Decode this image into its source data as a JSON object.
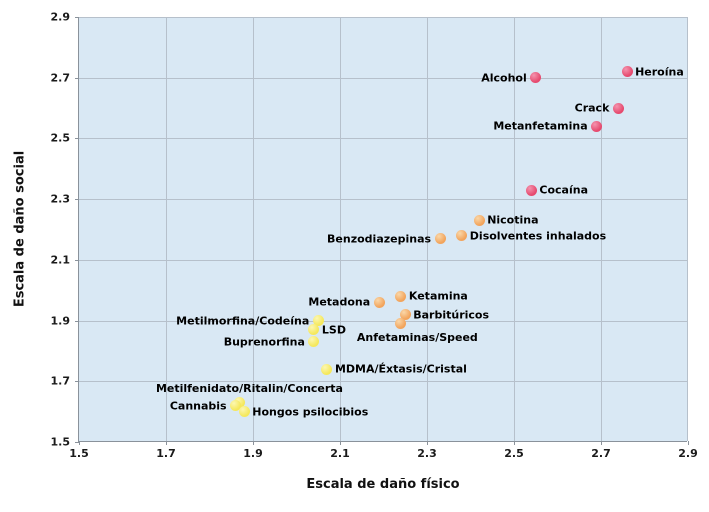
{
  "palette": {
    "plot_background": "#D9E8F4",
    "grid": "#B6C0CB",
    "axis": "#8A929B",
    "label_text": "#000000",
    "high_harm": "#E64A6E",
    "medium_harm": "#F2A45C",
    "low_harm": "#F5E85C"
  },
  "chart_data": {
    "type": "scatter",
    "title": "",
    "xlabel": "Escala de daño físico",
    "ylabel": "Escala de daño social",
    "xlim": [
      1.5,
      2.9
    ],
    "ylim": [
      1.5,
      2.9
    ],
    "grid": true,
    "legend_position": "none",
    "x_ticks": [
      1.5,
      1.7,
      1.9,
      2.1,
      2.3,
      2.5,
      2.7,
      2.9
    ],
    "y_ticks": [
      2.9,
      2.7,
      2.5,
      2.3,
      2.1,
      1.9,
      1.7,
      1.5
    ],
    "series": [
      {
        "name": "high-harm",
        "color": "#E64A6E",
        "highlight": "#F493AE",
        "points": [
          {
            "id": "alcohol",
            "label": "Alcohol",
            "x": 2.55,
            "y": 2.7,
            "anchor": "left"
          },
          {
            "id": "heroina",
            "label": "Heroína",
            "x": 2.76,
            "y": 2.72,
            "anchor": "right"
          },
          {
            "id": "crack",
            "label": "Crack",
            "x": 2.74,
            "y": 2.6,
            "anchor": "left"
          },
          {
            "id": "metanfetamina",
            "label": "Metanfetamina",
            "x": 2.69,
            "y": 2.54,
            "anchor": "left"
          },
          {
            "id": "cocaina",
            "label": "Cocaína",
            "x": 2.54,
            "y": 2.33,
            "anchor": "right"
          }
        ]
      },
      {
        "name": "medium-harm",
        "color": "#F2A45C",
        "highlight": "#FAD7A8",
        "points": [
          {
            "id": "nicotina",
            "label": "Nicotina",
            "x": 2.42,
            "y": 2.23,
            "anchor": "right"
          },
          {
            "id": "disolventes-inhalados",
            "label": "Disolventes inhalados",
            "x": 2.38,
            "y": 2.18,
            "anchor": "right"
          },
          {
            "id": "benzodiazepinas",
            "label": "Benzodiazepinas",
            "x": 2.33,
            "y": 2.17,
            "anchor": "left"
          },
          {
            "id": "ketamina",
            "label": "Ketamina",
            "x": 2.24,
            "y": 1.98,
            "anchor": "right"
          },
          {
            "id": "metadona",
            "label": "Metadona",
            "x": 2.19,
            "y": 1.96,
            "anchor": "left"
          },
          {
            "id": "barbituricos",
            "label": "Barbitúricos",
            "x": 2.25,
            "y": 1.92,
            "anchor": "right"
          },
          {
            "id": "anfetaminas-speed",
            "label": "Anfetaminas/Speed",
            "x": 2.24,
            "y": 1.89,
            "anchor": "free",
            "dx": -44,
            "dy": 7
          }
        ]
      },
      {
        "name": "low-harm",
        "color": "#F5E85C",
        "highlight": "#FCF7B2",
        "points": [
          {
            "id": "metilmorfina-codeina",
            "label": "Metilmorfina/Codeína",
            "x": 2.05,
            "y": 1.9,
            "anchor": "left"
          },
          {
            "id": "lsd",
            "label": "LSD",
            "x": 2.04,
            "y": 1.87,
            "anchor": "right"
          },
          {
            "id": "buprenorfina",
            "label": "Buprenorfina",
            "x": 2.04,
            "y": 1.83,
            "anchor": "left"
          },
          {
            "id": "mdma-extasis-cristal",
            "label": "MDMA/Éxtasis/Cristal",
            "x": 2.07,
            "y": 1.74,
            "anchor": "right"
          },
          {
            "id": "metilfenidato-ritalin-concerta",
            "label": "Metilfenidato/Ritalin/Concerta",
            "x": 1.87,
            "y": 1.63,
            "anchor": "free",
            "dx": -84,
            "dy": -21
          },
          {
            "id": "cannabis",
            "label": "Cannabis",
            "x": 1.86,
            "y": 1.62,
            "anchor": "left"
          },
          {
            "id": "hongos-psilocibios",
            "label": "Hongos psilocibios",
            "x": 1.88,
            "y": 1.6,
            "anchor": "right"
          }
        ]
      }
    ]
  }
}
